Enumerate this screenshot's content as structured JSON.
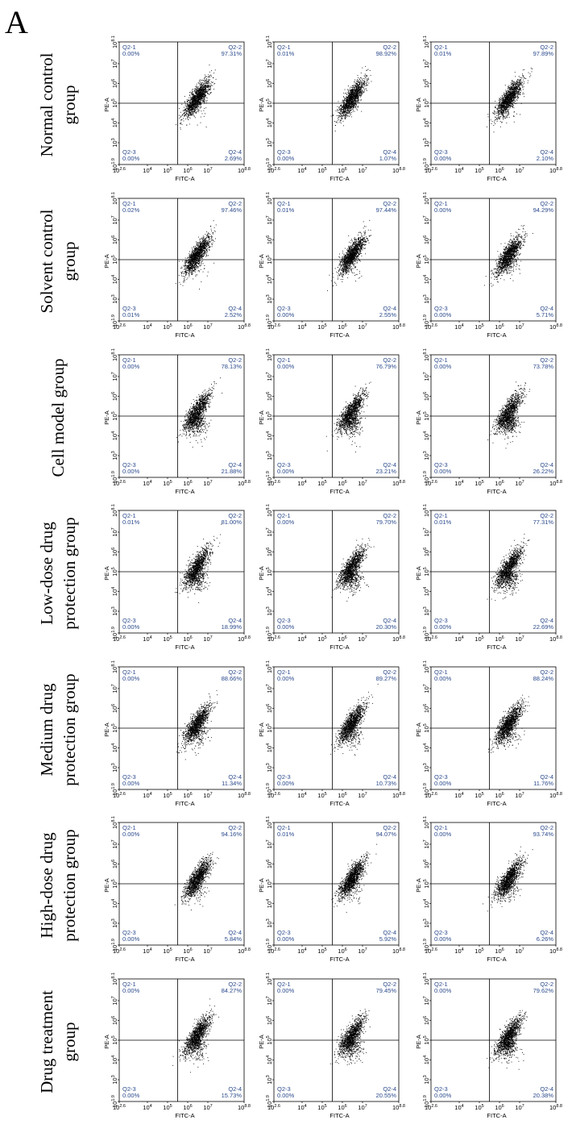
{
  "panel_label": "A",
  "chart_data": {
    "type": "scatter",
    "xlabel": "FITC-A",
    "ylabel": "PE-A",
    "x_scale": "log",
    "y_scale": "log",
    "xlim": [
      2.6,
      8.8
    ],
    "ylim": [
      1.9,
      8.1
    ],
    "x_ticks": [
      "10^2.6",
      "10^4",
      "10^5",
      "10^6",
      "10^7",
      "10^8.8"
    ],
    "y_ticks": [
      "10^1.9",
      "10^3",
      "10^4",
      "10^5",
      "10^6",
      "10^7",
      "10^8.1"
    ],
    "quadrant_names": [
      "Q2-1",
      "Q2-2",
      "Q2-3",
      "Q2-4"
    ],
    "grid": false,
    "groups": [
      {
        "label": "Normal control group",
        "label_lines": [
          "Normal control",
          "group"
        ],
        "replicates": [
          {
            "Q2-1": "0.00%",
            "Q2-2": "97.31%",
            "Q2-3": "0.00%",
            "Q2-4": "2.69%"
          },
          {
            "Q2-1": "0.01%",
            "Q2-2": "98.92%",
            "Q2-3": "0.00%",
            "Q2-4": "1.07%"
          },
          {
            "Q2-1": "0.01%",
            "Q2-2": "97.89%",
            "Q2-3": "0.00%",
            "Q2-4": "2.10%"
          }
        ]
      },
      {
        "label": "Solvent control group",
        "label_lines": [
          "Solvent control",
          "group"
        ],
        "replicates": [
          {
            "Q2-1": "0.02%",
            "Q2-2": "97.46%",
            "Q2-3": "0.01%",
            "Q2-4": "2.52%"
          },
          {
            "Q2-1": "0.01%",
            "Q2-2": "97.44%",
            "Q2-3": "0.00%",
            "Q2-4": "2.55%"
          },
          {
            "Q2-1": "0.00%",
            "Q2-2": "94.29%",
            "Q2-3": "0.00%",
            "Q2-4": "5.71%"
          }
        ]
      },
      {
        "label": "Cell model group",
        "label_lines": [
          "Cell model group"
        ],
        "replicates": [
          {
            "Q2-1": "0.00%",
            "Q2-2": "78.13%",
            "Q2-3": "0.00%",
            "Q2-4": "21.88%"
          },
          {
            "Q2-1": "0.00%",
            "Q2-2": "76.79%",
            "Q2-3": "0.00%",
            "Q2-4": "23.21%"
          },
          {
            "Q2-1": "0.00%",
            "Q2-2": "73.78%",
            "Q2-3": "0.00%",
            "Q2-4": "26.22%"
          }
        ]
      },
      {
        "label": "Low-dose drug protection group",
        "label_lines": [
          "Low-dose drug",
          "protection group"
        ],
        "replicates": [
          {
            "Q2-1": "0.01%",
            "Q2-2": "81.00%",
            "Q2-3": "0.00%",
            "Q2-4": "18.99%"
          },
          {
            "Q2-1": "0.00%",
            "Q2-2": "79.70%",
            "Q2-3": "0.00%",
            "Q2-4": "20.30%"
          },
          {
            "Q2-1": "0.01%",
            "Q2-2": "77.31%",
            "Q2-3": "0.00%",
            "Q2-4": "22.69%"
          }
        ]
      },
      {
        "label": "Medium drug protection group",
        "label_lines": [
          "Medium drug",
          "protection group"
        ],
        "replicates": [
          {
            "Q2-1": "0.00%",
            "Q2-2": "88.66%",
            "Q2-3": "0.00%",
            "Q2-4": "11.34%"
          },
          {
            "Q2-1": "0.00%",
            "Q2-2": "89.27%",
            "Q2-3": "0.00%",
            "Q2-4": "10.73%"
          },
          {
            "Q2-1": "0.00%",
            "Q2-2": "88.24%",
            "Q2-3": "0.00%",
            "Q2-4": "11.76%"
          }
        ]
      },
      {
        "label": "High-dose drug protection group",
        "label_lines": [
          "High-dose drug",
          "protection group"
        ],
        "replicates": [
          {
            "Q2-1": "0.00%",
            "Q2-2": "94.16%",
            "Q2-3": "0.00%",
            "Q2-4": "5.84%"
          },
          {
            "Q2-1": "0.01%",
            "Q2-2": "94.07%",
            "Q2-3": "0.00%",
            "Q2-4": "5.92%"
          },
          {
            "Q2-1": "0.00%",
            "Q2-2": "93.74%",
            "Q2-3": "0.00%",
            "Q2-4": "6.26%"
          }
        ]
      },
      {
        "label": "Drug treatment group",
        "label_lines": [
          "Drug treatment",
          "group"
        ],
        "replicates": [
          {
            "Q2-1": "0.00%",
            "Q2-2": "84.27%",
            "Q2-3": "0.00%",
            "Q2-4": "15.73%"
          },
          {
            "Q2-1": "0.00%",
            "Q2-2": "79.45%",
            "Q2-3": "0.00%",
            "Q2-4": "20.55%"
          },
          {
            "Q2-1": "0.00%",
            "Q2-2": "79.62%",
            "Q2-3": "0.00%",
            "Q2-4": "20.38%"
          }
        ]
      }
    ]
  },
  "colors": {
    "label_text": "#2b4a8c",
    "axes": "#000000",
    "points": "#000000"
  }
}
